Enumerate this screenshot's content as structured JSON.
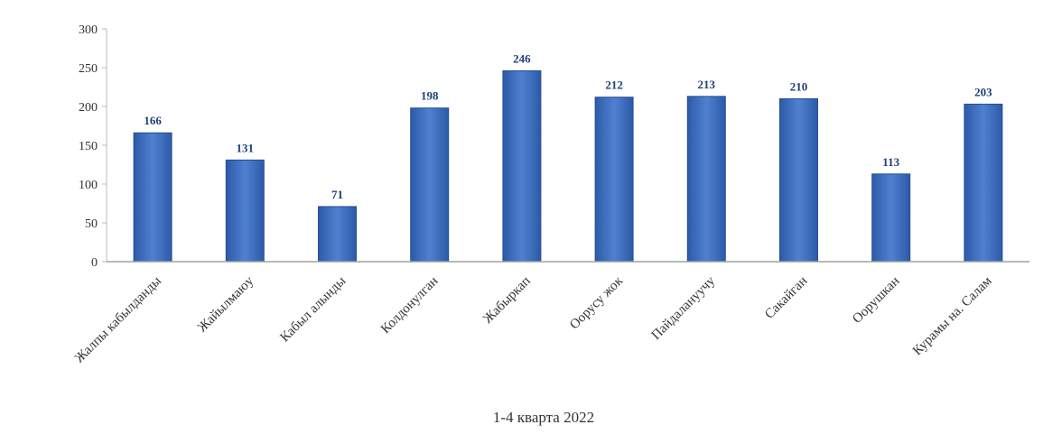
{
  "chart_data": {
    "type": "bar",
    "categories": [
      "Жалпы кабылданды",
      "Жайылмаюу",
      "Кабыл алынды",
      "Колдонулган",
      "Жабыркап",
      "Оорусу жок",
      "Пайдалануучу",
      "Сакайган",
      "Оорушкан",
      "Курамы на. Салам"
    ],
    "values": [
      166,
      131,
      71,
      198,
      246,
      212,
      213,
      210,
      113,
      203
    ],
    "data_labels": [
      "166",
      "131",
      "71",
      "198",
      "246",
      "212",
      "213",
      "210",
      "113",
      "203"
    ],
    "y_ticks": [
      "0",
      "50",
      "100",
      "150",
      "200",
      "250",
      "300"
    ],
    "xlabel": "1-4 кварта 2022",
    "ylim": [
      0,
      300
    ],
    "bar_color": "#3f6fbd",
    "grid": false
  }
}
